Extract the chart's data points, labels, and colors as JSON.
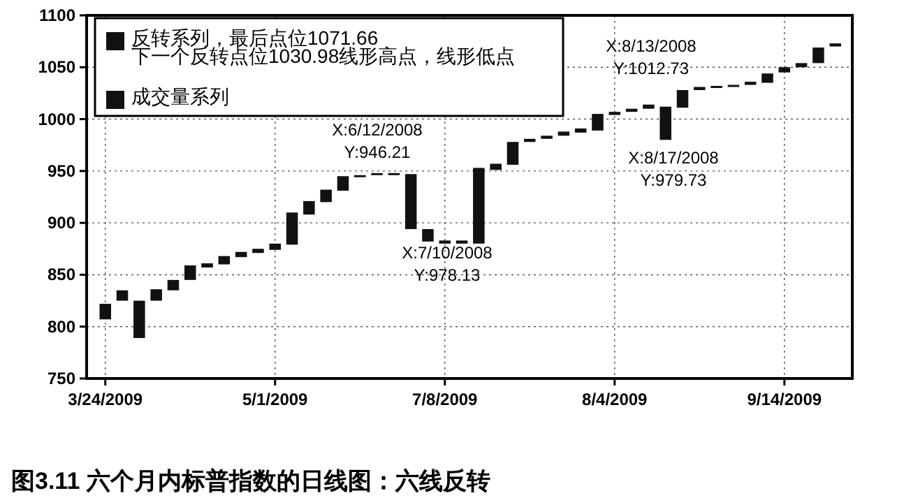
{
  "chart_data": {
    "type": "bar",
    "categories": [
      "3/24/2009",
      null,
      null,
      null,
      null,
      null,
      null,
      null,
      null,
      null,
      "5/1/2009",
      null,
      null,
      null,
      null,
      null,
      null,
      null,
      null,
      null,
      "7/8/2009",
      null,
      null,
      null,
      null,
      null,
      null,
      null,
      null,
      null,
      "8/4/2009",
      null,
      null,
      null,
      null,
      null,
      null,
      null,
      null,
      null,
      "9/14/2009",
      null,
      null,
      null
    ],
    "series": [
      {
        "name": "反转系列，最后点位1071.66\n下一个反转点位1030.98线形高点，线形低点",
        "color": "#111111",
        "base": [
          807,
          825,
          789,
          825,
          835,
          845,
          857,
          860,
          867,
          871,
          874,
          879,
          908,
          920,
          931,
          944,
          946,
          946,
          894,
          882,
          880,
          880,
          880,
          951,
          956,
          978,
          981,
          984,
          987,
          989,
          1004,
          1007,
          1010,
          980,
          1011,
          1028,
          1030,
          1031,
          1033,
          1035,
          1045,
          1050,
          1054,
          1070
        ],
        "values": [
          15,
          10,
          36,
          11,
          10,
          14,
          4,
          8,
          5,
          4,
          6,
          31,
          13,
          12,
          14,
          2,
          2,
          2,
          53,
          12,
          3,
          3,
          73,
          6,
          22,
          3,
          3,
          4,
          4,
          16,
          3,
          3,
          4,
          32,
          17,
          3,
          2,
          2,
          3,
          9,
          5,
          4,
          15,
          3
        ]
      },
      {
        "name": "成交量系列",
        "color": "#111111",
        "values": [
          null,
          null,
          null,
          null,
          null,
          null,
          null,
          null,
          null,
          null,
          null,
          null,
          null,
          null,
          null,
          null,
          null,
          null,
          null,
          null,
          null,
          null,
          null,
          null,
          null,
          null,
          null,
          null,
          null,
          null,
          null,
          null,
          null,
          null,
          null,
          null,
          null,
          null,
          null,
          null,
          null,
          null,
          null,
          null
        ]
      }
    ],
    "ylim": [
      750,
      1100
    ],
    "yticks": [
      750,
      800,
      850,
      900,
      950,
      1000,
      1050,
      1100
    ],
    "grid": true,
    "legend": "top left",
    "annotations": [
      "X:6/12/2008\nY:946.21",
      "X:7/10/2008\nY:978.13",
      "X:8/13/2008\nY:1012.73",
      "X:8/17/2008\nY:979.73",
      "图3.11 六个月内标普指数的日线图：六线反转"
    ]
  }
}
